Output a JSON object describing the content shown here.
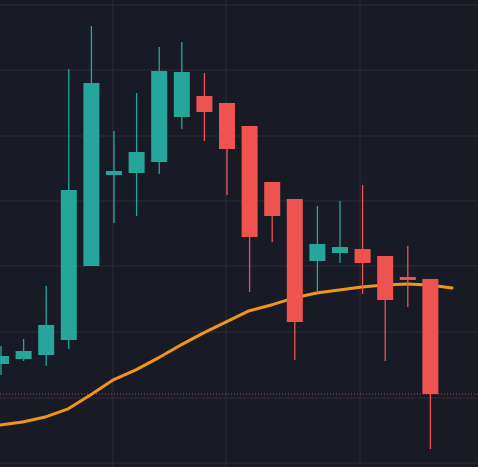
{
  "chart_data": {
    "type": "candlestick",
    "title": "",
    "xlabel": "",
    "ylabel": "",
    "ylim": [
      0,
      467
    ],
    "grid": true,
    "colors": {
      "background": "#181b25",
      "grid": "#2a2e39",
      "up": "#26a69a",
      "down": "#ef5350",
      "ma": "#f0961a",
      "price_line": "#ef5350"
    },
    "candles": [
      {
        "open": 103,
        "close": 111,
        "high": 121,
        "low": 92
      },
      {
        "open": 108,
        "close": 116,
        "high": 128,
        "low": 106
      },
      {
        "open": 112,
        "close": 142,
        "high": 181,
        "low": 101
      },
      {
        "open": 127,
        "close": 277,
        "high": 398,
        "low": 118
      },
      {
        "open": 201,
        "close": 384,
        "high": 441,
        "low": 201
      },
      {
        "open": 292,
        "close": 296,
        "high": 336,
        "low": 244
      },
      {
        "open": 294,
        "close": 315,
        "high": 374,
        "low": 251
      },
      {
        "open": 305,
        "close": 396,
        "high": 420,
        "low": 293
      },
      {
        "open": 350,
        "close": 395,
        "high": 425,
        "low": 338
      },
      {
        "open": 371,
        "close": 355,
        "high": 394,
        "low": 326
      },
      {
        "open": 364,
        "close": 318,
        "high": 364,
        "low": 272
      },
      {
        "open": 341,
        "close": 230,
        "high": 341,
        "low": 175
      },
      {
        "open": 285,
        "close": 251,
        "high": 285,
        "low": 225
      },
      {
        "open": 268,
        "close": 145,
        "high": 268,
        "low": 107
      },
      {
        "open": 206,
        "close": 223,
        "high": 261,
        "low": 174
      },
      {
        "open": 214,
        "close": 220,
        "high": 266,
        "low": 204
      },
      {
        "open": 218,
        "close": 204,
        "high": 282,
        "low": 173
      },
      {
        "open": 211,
        "close": 167,
        "high": 211,
        "low": 106
      },
      {
        "open": 190,
        "close": 187,
        "high": 221,
        "low": 160
      },
      {
        "open": 188,
        "close": 73,
        "high": 188,
        "low": 18
      }
    ],
    "ma": [
      42,
      45,
      50,
      58,
      72,
      87,
      97,
      109,
      122,
      134,
      145,
      156,
      162,
      169,
      174,
      177,
      180,
      182,
      183,
      182,
      179
    ],
    "last_price": 73
  }
}
